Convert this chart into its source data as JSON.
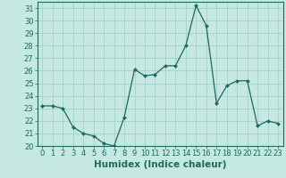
{
  "x": [
    0,
    1,
    2,
    3,
    4,
    5,
    6,
    7,
    8,
    9,
    10,
    11,
    12,
    13,
    14,
    15,
    16,
    17,
    18,
    19,
    20,
    21,
    22,
    23
  ],
  "y": [
    23.2,
    23.2,
    23.0,
    21.5,
    21.0,
    20.8,
    20.2,
    20.0,
    22.3,
    26.1,
    25.6,
    25.7,
    26.4,
    26.4,
    28.0,
    31.2,
    29.6,
    23.4,
    24.8,
    25.2,
    25.2,
    21.6,
    22.0,
    21.8
  ],
  "line_color": "#1a6b5a",
  "marker": "D",
  "marker_size": 2.0,
  "bg_color": "#c5e8e0",
  "grid_color": "#9ecec5",
  "xlabel": "Humidex (Indice chaleur)",
  "ylim": [
    20,
    31.5
  ],
  "xlim": [
    -0.5,
    23.5
  ],
  "yticks": [
    20,
    21,
    22,
    23,
    24,
    25,
    26,
    27,
    28,
    29,
    30,
    31
  ],
  "xticks": [
    0,
    1,
    2,
    3,
    4,
    5,
    6,
    7,
    8,
    9,
    10,
    11,
    12,
    13,
    14,
    15,
    16,
    17,
    18,
    19,
    20,
    21,
    22,
    23
  ],
  "tick_color": "#1a6b5a",
  "label_fontsize": 7.5,
  "tick_fontsize": 6.0,
  "spine_color": "#1a6b5a",
  "linewidth": 0.9
}
